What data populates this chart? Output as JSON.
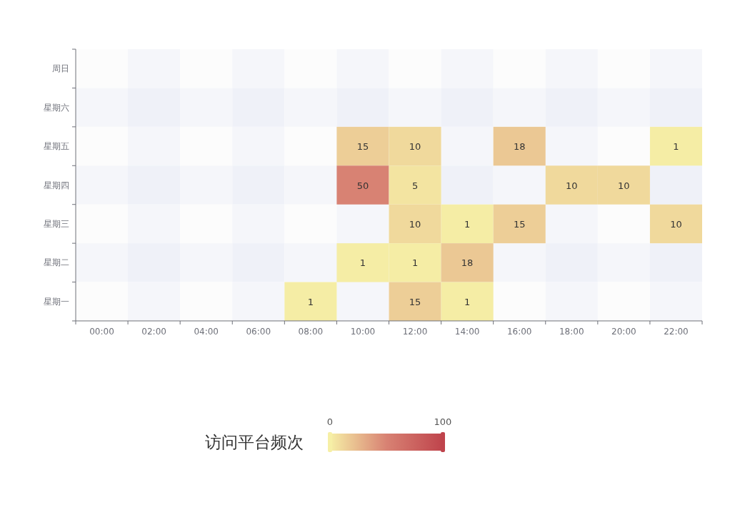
{
  "chart_data": {
    "type": "heatmap",
    "categories": [
      "00:00",
      "02:00",
      "04:00",
      "06:00",
      "08:00",
      "10:00",
      "12:00",
      "14:00",
      "16:00",
      "18:00",
      "20:00",
      "22:00"
    ],
    "y_categories": [
      "周日",
      "星期六",
      "星期五",
      "星期四",
      "星期三",
      "星期二",
      "星期一"
    ],
    "cells": [
      [
        null,
        null,
        null,
        null,
        null,
        null,
        null,
        null,
        null,
        null,
        null,
        null
      ],
      [
        null,
        null,
        null,
        null,
        null,
        null,
        null,
        null,
        null,
        null,
        null,
        null
      ],
      [
        null,
        null,
        null,
        null,
        null,
        15,
        10,
        null,
        18,
        null,
        null,
        1
      ],
      [
        null,
        null,
        null,
        null,
        null,
        50,
        5,
        null,
        null,
        10,
        10,
        null
      ],
      [
        null,
        null,
        null,
        null,
        null,
        null,
        10,
        1,
        15,
        null,
        null,
        10
      ],
      [
        null,
        null,
        null,
        null,
        null,
        1,
        1,
        18,
        null,
        null,
        null,
        null
      ],
      [
        null,
        null,
        null,
        null,
        1,
        null,
        15,
        1,
        null,
        null,
        null,
        null
      ]
    ],
    "clim": [
      0,
      100
    ],
    "cticks": [
      0,
      100
    ],
    "clabel": "访问平台频次",
    "data_labels": true
  }
}
